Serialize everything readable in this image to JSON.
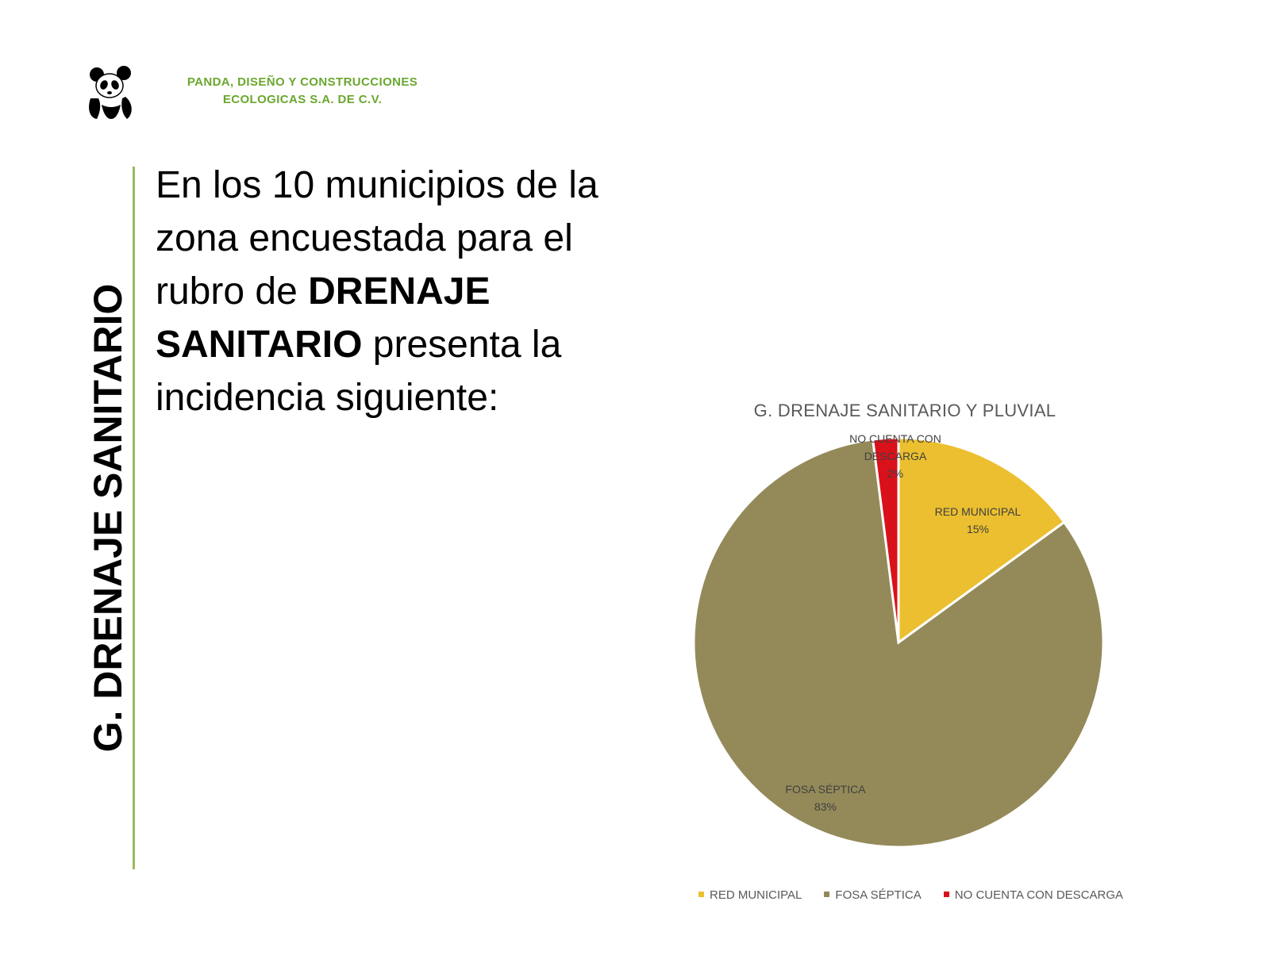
{
  "header": {
    "company_line1": "PANDA, DISEÑO Y CONSTRUCCIONES",
    "company_line2": "ECOLOGICAS S.A. DE C.V.",
    "logo_icon": "panda-logo-icon"
  },
  "side_title": "G. DRENAJE SANITARIO",
  "intro": {
    "part1": "En los 10 municipios de la zona encuestada para el rubro de ",
    "bold": "DRENAJE SANITARIO",
    "part2": " presenta la incidencia siguiente:"
  },
  "colors": {
    "accent_green": "#6aa72e",
    "divider_green": "#9bbb59"
  },
  "chart_data": {
    "type": "pie",
    "title": "G. DRENAJE SANITARIO Y PLUVIAL",
    "slices": [
      {
        "label": "RED MUNICIPAL",
        "value": 15,
        "pct_label": "15%",
        "color": "#ebbf2f"
      },
      {
        "label": "FOSA SÉPTICA",
        "value": 83,
        "pct_label": "83%",
        "color": "#948a59"
      },
      {
        "label": "NO CUENTA CON DESCARGA",
        "value": 2,
        "pct_label": "2%",
        "color": "#d9111a"
      }
    ],
    "legend_position": "bottom",
    "data_labels": true
  }
}
